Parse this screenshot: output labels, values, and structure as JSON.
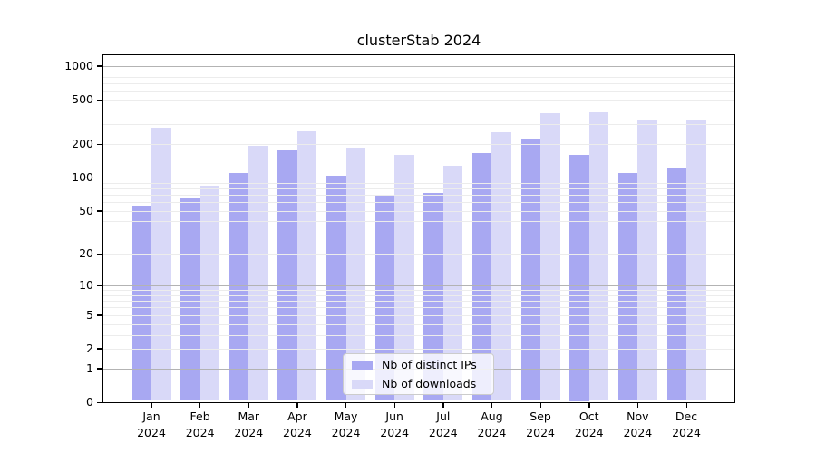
{
  "chart_data": {
    "type": "bar",
    "title": "clusterStab 2024",
    "categories": [
      "Jan\n2024",
      "Feb\n2024",
      "Mar\n2024",
      "Apr\n2024",
      "May\n2024",
      "Jun\n2024",
      "Jul\n2024",
      "Aug\n2024",
      "Sep\n2024",
      "Oct\n2024",
      "Nov\n2024",
      "Dec\n2024"
    ],
    "series": [
      {
        "name": "Nb of distinct IPs",
        "color": "#a8a8f2",
        "values": [
          56,
          65,
          111,
          176,
          104,
          69,
          73,
          165,
          223,
          160,
          109,
          123
        ]
      },
      {
        "name": "Nb of downloads",
        "color": "#d9d9f8",
        "values": [
          281,
          84,
          193,
          259,
          186,
          161,
          127,
          257,
          376,
          383,
          325,
          328
        ]
      }
    ],
    "xlabel": "",
    "ylabel": "",
    "yscale": "log1p",
    "ylim": [
      0,
      1250
    ],
    "yticks": [
      0,
      1,
      2,
      5,
      10,
      20,
      50,
      100,
      200,
      500,
      1000
    ],
    "grid": "both",
    "legend_position": "lower center",
    "colors": {
      "major_grid": "#b3b3b3",
      "minor_grid": "#ececec",
      "spine": "#000000"
    }
  }
}
